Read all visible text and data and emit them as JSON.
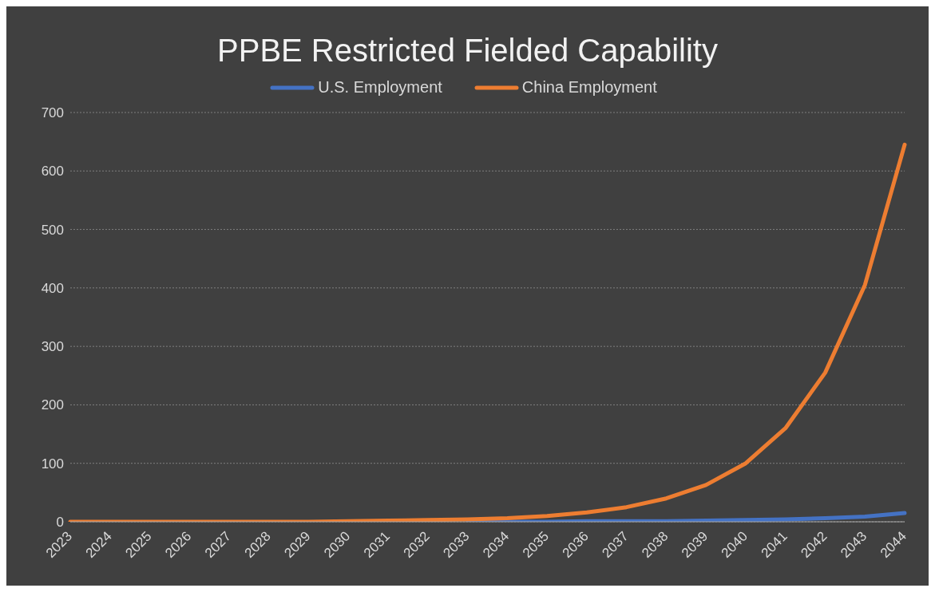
{
  "chart_data": {
    "type": "line",
    "title": "PPBE Restricted Fielded Capability",
    "categories": [
      "2023",
      "2024",
      "2025",
      "2026",
      "2027",
      "2028",
      "2029",
      "2030",
      "2031",
      "2032",
      "2033",
      "2034",
      "2035",
      "2036",
      "2037",
      "2038",
      "2039",
      "2040",
      "2041",
      "2042",
      "2043",
      "2044"
    ],
    "series": [
      {
        "name": "U.S. Employment",
        "color": "#4472c4",
        "values": [
          null,
          null,
          null,
          null,
          null,
          null,
          null,
          null,
          null,
          null,
          0,
          0,
          0,
          1,
          1,
          1,
          2,
          3,
          4,
          6,
          9,
          15
        ]
      },
      {
        "name": "China Employment",
        "color": "#ed7d31",
        "values": [
          0,
          0,
          0,
          0,
          0,
          0,
          0,
          1,
          2,
          3,
          4,
          6,
          10,
          16,
          25,
          40,
          63,
          100,
          160,
          255,
          405,
          645
        ]
      }
    ],
    "ylim": [
      0,
      700
    ],
    "yticks": [
      0,
      100,
      200,
      300,
      400,
      500,
      600,
      700
    ],
    "grid": "y",
    "legend": "top",
    "marker": "none",
    "line_style": "solid"
  }
}
